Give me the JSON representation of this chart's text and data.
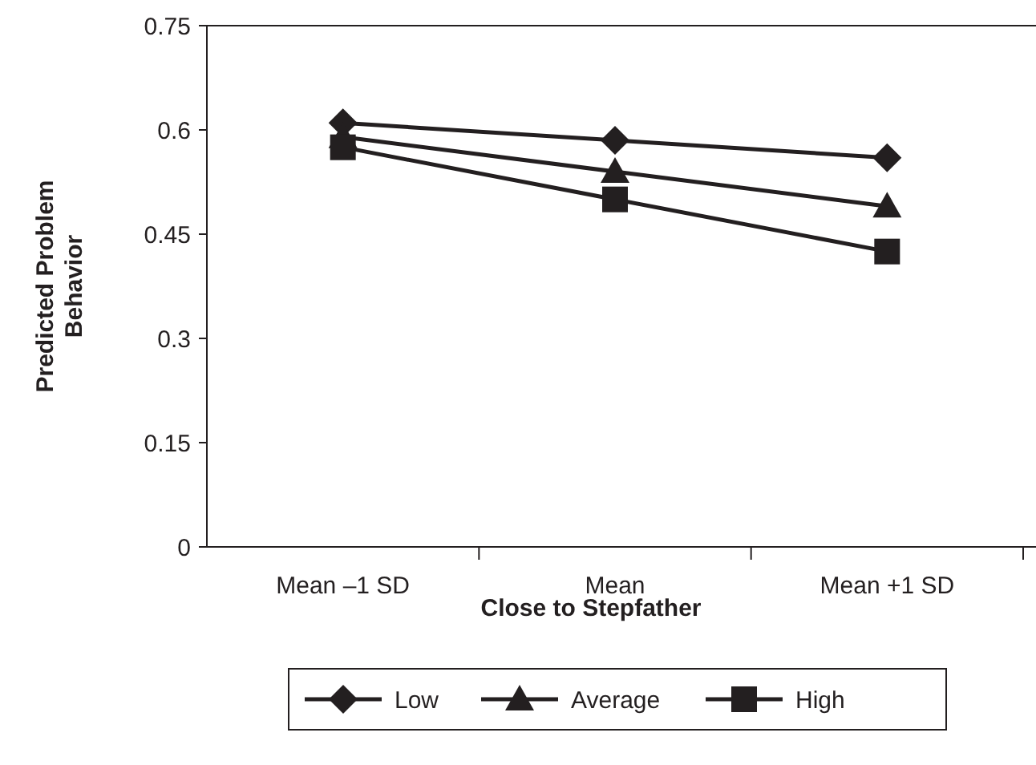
{
  "chart_data": {
    "type": "line",
    "xlabel": "Close to Stepfather",
    "ylabel": "Predicted Problem Behavior",
    "categories": [
      "Mean –1 SD",
      "Mean",
      "Mean +1 SD"
    ],
    "series": [
      {
        "name": "Low",
        "color": "#231f20",
        "values": [
          0.61,
          0.585,
          0.56
        ],
        "marker": "diamond"
      },
      {
        "name": "Average",
        "color": "#231f20",
        "values": [
          0.59,
          0.54,
          0.49
        ],
        "marker": "triangle"
      },
      {
        "name": "High",
        "color": "#231f20",
        "values": [
          0.575,
          0.5,
          0.425
        ],
        "marker": "square"
      }
    ],
    "ylim": [
      0,
      0.75
    ],
    "yticks": [
      0,
      0.15,
      0.3,
      0.45,
      0.6,
      0.75
    ],
    "grid": false,
    "legend": "bottom",
    "line_style": "solid"
  }
}
